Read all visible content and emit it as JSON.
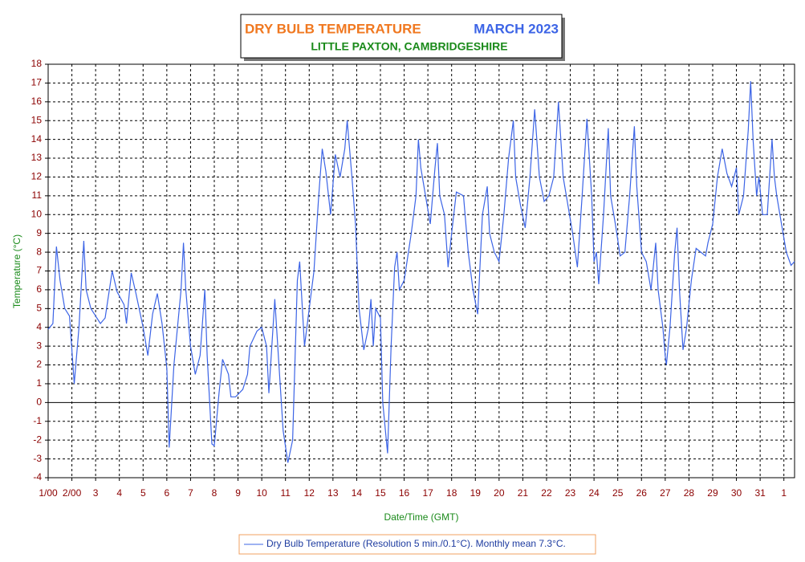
{
  "chart_data": {
    "type": "line",
    "title": "DRY BULB TEMPERATURE",
    "period": "MARCH 2023",
    "subtitle": "LITTLE PAXTON, CAMBRIDGESHIRE",
    "xlabel": "Date/Time (GMT)",
    "ylabel": "Temperature (°C)",
    "xlim": [
      0,
      31.45
    ],
    "ylim": [
      -4,
      18
    ],
    "yticks": [
      -4,
      -3,
      -2,
      -1,
      0,
      1,
      2,
      3,
      4,
      5,
      6,
      7,
      8,
      9,
      10,
      11,
      12,
      13,
      14,
      15,
      16,
      17,
      18
    ],
    "xticks": [
      {
        "value": 0,
        "label": "1/00"
      },
      {
        "value": 1,
        "label": "2/00"
      },
      {
        "value": 2,
        "label": "3"
      },
      {
        "value": 3,
        "label": "4"
      },
      {
        "value": 4,
        "label": "5"
      },
      {
        "value": 5,
        "label": "6"
      },
      {
        "value": 6,
        "label": "7"
      },
      {
        "value": 7,
        "label": "8"
      },
      {
        "value": 8,
        "label": "9"
      },
      {
        "value": 9,
        "label": "10"
      },
      {
        "value": 10,
        "label": "11"
      },
      {
        "value": 11,
        "label": "12"
      },
      {
        "value": 12,
        "label": "13"
      },
      {
        "value": 13,
        "label": "14"
      },
      {
        "value": 14,
        "label": "15"
      },
      {
        "value": 15,
        "label": "16"
      },
      {
        "value": 16,
        "label": "17"
      },
      {
        "value": 17,
        "label": "18"
      },
      {
        "value": 18,
        "label": "19"
      },
      {
        "value": 19,
        "label": "20"
      },
      {
        "value": 20,
        "label": "21"
      },
      {
        "value": 21,
        "label": "22"
      },
      {
        "value": 22,
        "label": "23"
      },
      {
        "value": 23,
        "label": "24"
      },
      {
        "value": 24,
        "label": "25"
      },
      {
        "value": 25,
        "label": "26"
      },
      {
        "value": 26,
        "label": "27"
      },
      {
        "value": 27,
        "label": "28"
      },
      {
        "value": 28,
        "label": "29"
      },
      {
        "value": 29,
        "label": "30"
      },
      {
        "value": 30,
        "label": "31"
      },
      {
        "value": 31,
        "label": "1"
      }
    ],
    "grid": true,
    "x": [
      0,
      0.2,
      0.35,
      0.5,
      0.7,
      0.9,
      1.1,
      1.3,
      1.5,
      1.6,
      1.8,
      2.2,
      2.4,
      2.7,
      2.9,
      3.2,
      3.3,
      3.5,
      3.7,
      4.0,
      4.2,
      4.4,
      4.6,
      4.8,
      5.0,
      5.1,
      5.3,
      5.6,
      5.7,
      5.8,
      6.0,
      6.2,
      6.4,
      6.6,
      6.7,
      6.9,
      7.0,
      7.2,
      7.35,
      7.6,
      7.7,
      7.9,
      8.2,
      8.4,
      8.5,
      8.8,
      9.0,
      9.2,
      9.3,
      9.55,
      9.7,
      9.9,
      10.1,
      10.3,
      10.5,
      10.6,
      10.8,
      11.0,
      11.2,
      11.4,
      11.55,
      11.7,
      11.9,
      12.1,
      12.3,
      12.5,
      12.6,
      12.8,
      12.95,
      13.1,
      13.3,
      13.5,
      13.6,
      13.7,
      13.8,
      14.0,
      14.1,
      14.3,
      14.45,
      14.6,
      14.7,
      14.8,
      15.0,
      15.3,
      15.5,
      15.6,
      15.7,
      15.9,
      16.1,
      16.3,
      16.4,
      16.5,
      16.7,
      16.85,
      17.0,
      17.2,
      17.5,
      17.7,
      17.9,
      18.1,
      18.3,
      18.5,
      18.6,
      18.8,
      19.0,
      19.2,
      19.4,
      19.6,
      19.7,
      19.9,
      20.1,
      20.3,
      20.5,
      20.7,
      20.9,
      21.1,
      21.3,
      21.5,
      21.7,
      21.9,
      22.1,
      22.3,
      22.5,
      22.7,
      22.9,
      23.0,
      23.1,
      23.2,
      23.4,
      23.6,
      23.7,
      23.9,
      24.1,
      24.3,
      24.5,
      24.7,
      24.8,
      25.0,
      25.2,
      25.4,
      25.6,
      25.7,
      25.9,
      26.0,
      26.05,
      26.2,
      26.4,
      26.5,
      26.6,
      26.75,
      26.9,
      27.1,
      27.3,
      27.5,
      27.7,
      27.8,
      28.0,
      28.2,
      28.4,
      28.6,
      28.8,
      29.0,
      29.1,
      29.3,
      29.5,
      29.6,
      29.7,
      29.85,
      29.95,
      30.1,
      30.3,
      30.5,
      30.6,
      30.7,
      30.9,
      31.1,
      31.3,
      31.45
    ],
    "series": [
      {
        "name": "Dry Bulb Temperature (Resolution 5 min./0.1°C). Monthly mean 7.3°C.",
        "color": "#3c64e6",
        "values": [
          3.9,
          4.2,
          8.3,
          6.5,
          5,
          4.6,
          1.0,
          4,
          8.6,
          6,
          5,
          4.2,
          4.5,
          7.0,
          5.9,
          5.2,
          4.2,
          6.9,
          5.8,
          4.0,
          2.5,
          4.7,
          5.8,
          4.2,
          1.8,
          -2.4,
          2,
          6,
          8.5,
          6,
          3,
          1.5,
          2.5,
          6.0,
          2.5,
          -2.2,
          -2.3,
          0.5,
          2.3,
          1.5,
          0.3,
          0.3,
          0.7,
          1.5,
          3,
          3.8,
          4.0,
          3.0,
          0.5,
          5.5,
          2.5,
          -1.5,
          -3.2,
          -2,
          6.5,
          7.5,
          3.0,
          5,
          7,
          11,
          13.5,
          12.3,
          10,
          13.2,
          12,
          13.5,
          15,
          12,
          9.5,
          5,
          2.8,
          4,
          5.5,
          3,
          5,
          4.5,
          0,
          -2.7,
          3,
          7.2,
          8,
          6,
          6.5,
          9,
          11,
          14,
          12.5,
          11,
          9.5,
          12.5,
          13.8,
          11,
          10,
          7.2,
          9,
          11.2,
          11,
          8,
          6,
          4.7,
          10,
          11.5,
          9,
          8,
          7.5,
          10,
          13,
          15,
          12,
          10.5,
          9.3,
          12,
          15.6,
          12,
          10.7,
          11,
          12,
          16,
          12,
          10.5,
          9,
          7.2,
          11,
          15.1,
          11,
          7.5,
          8,
          6.3,
          10,
          14.6,
          11,
          9.5,
          7.8,
          8,
          11,
          14.7,
          11.5,
          8,
          7.5,
          6,
          8.5,
          6,
          4,
          2.5,
          2.0,
          4,
          8,
          9.3,
          6,
          2.8,
          4,
          6.5,
          8.2,
          8,
          7.8,
          8.5,
          9.5,
          12,
          13.5,
          12.2,
          11.5,
          12.5,
          10,
          11,
          14.5,
          17.1,
          14,
          11,
          12,
          10,
          10,
          14,
          12,
          11,
          9.5,
          8,
          7.3,
          7.5
        ]
      }
    ]
  }
}
